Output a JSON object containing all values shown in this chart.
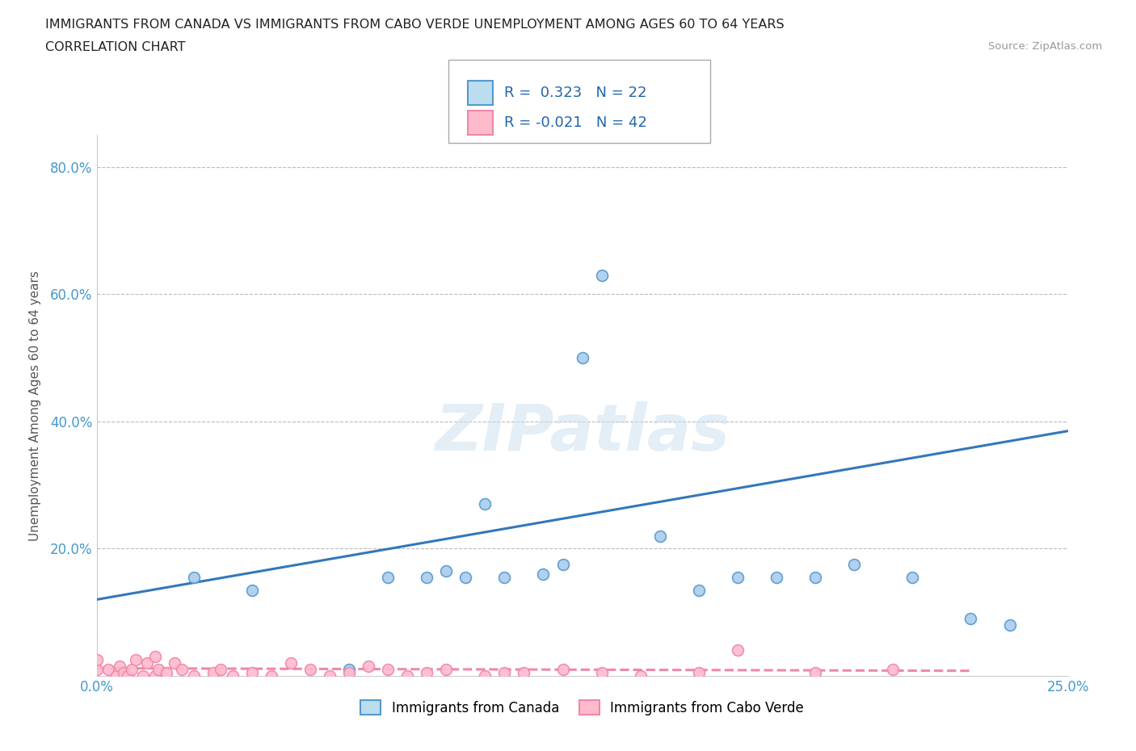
{
  "title_line1": "IMMIGRANTS FROM CANADA VS IMMIGRANTS FROM CABO VERDE UNEMPLOYMENT AMONG AGES 60 TO 64 YEARS",
  "title_line2": "CORRELATION CHART",
  "source_text": "Source: ZipAtlas.com",
  "ylabel": "Unemployment Among Ages 60 to 64 years",
  "xlim": [
    0.0,
    0.25
  ],
  "ylim": [
    0.0,
    0.85
  ],
  "xticks": [
    0.0,
    0.05,
    0.1,
    0.15,
    0.2,
    0.25
  ],
  "xticklabels": [
    "0.0%",
    "",
    "",
    "",
    "",
    "25.0%"
  ],
  "yticks": [
    0.0,
    0.2,
    0.4,
    0.6,
    0.8
  ],
  "yticklabels": [
    "",
    "20.0%",
    "40.0%",
    "60.0%",
    "80.0%"
  ],
  "watermark": "ZIPatlas",
  "canada_color": "#aaccee",
  "cabo_verde_color": "#ffbbcc",
  "canada_edge_color": "#5599cc",
  "cabo_verde_edge_color": "#ee88aa",
  "canada_R": 0.323,
  "canada_N": 22,
  "cabo_verde_R": -0.021,
  "cabo_verde_N": 42,
  "canada_line_color": "#3377bb",
  "cabo_verde_line_color": "#ee88aa",
  "canada_scatter_x": [
    0.025,
    0.04,
    0.065,
    0.075,
    0.085,
    0.09,
    0.095,
    0.1,
    0.105,
    0.115,
    0.12,
    0.125,
    0.13,
    0.145,
    0.155,
    0.165,
    0.175,
    0.185,
    0.195,
    0.21,
    0.225,
    0.235
  ],
  "canada_scatter_y": [
    0.155,
    0.135,
    0.01,
    0.155,
    0.155,
    0.165,
    0.155,
    0.27,
    0.155,
    0.16,
    0.175,
    0.5,
    0.63,
    0.22,
    0.135,
    0.155,
    0.155,
    0.155,
    0.175,
    0.155,
    0.09,
    0.08
  ],
  "cabo_verde_scatter_x": [
    0.0,
    0.0,
    0.003,
    0.005,
    0.006,
    0.007,
    0.008,
    0.009,
    0.01,
    0.012,
    0.013,
    0.015,
    0.015,
    0.016,
    0.018,
    0.02,
    0.022,
    0.025,
    0.03,
    0.032,
    0.035,
    0.04,
    0.045,
    0.05,
    0.055,
    0.06,
    0.065,
    0.07,
    0.075,
    0.08,
    0.085,
    0.09,
    0.1,
    0.105,
    0.11,
    0.12,
    0.13,
    0.14,
    0.155,
    0.165,
    0.185,
    0.205
  ],
  "cabo_verde_scatter_y": [
    0.01,
    0.025,
    0.01,
    0.0,
    0.015,
    0.005,
    0.0,
    0.01,
    0.025,
    0.0,
    0.02,
    0.0,
    0.03,
    0.01,
    0.005,
    0.02,
    0.01,
    0.0,
    0.005,
    0.01,
    0.0,
    0.005,
    0.0,
    0.02,
    0.01,
    0.0,
    0.005,
    0.015,
    0.01,
    0.0,
    0.005,
    0.01,
    0.0,
    0.005,
    0.005,
    0.01,
    0.005,
    0.0,
    0.005,
    0.04,
    0.005,
    0.01
  ],
  "canada_trendline_x": [
    0.0,
    0.25
  ],
  "canada_trendline_y": [
    0.12,
    0.385
  ],
  "cabo_verde_trendline_x": [
    0.0,
    0.225
  ],
  "cabo_verde_trendline_y": [
    0.012,
    0.008
  ],
  "grid_color": "#bbbbbb",
  "marker_size": 100,
  "legend_box_canada": "#bbddee",
  "legend_box_cabo_verde": "#ffbbcc",
  "title_fontsize": 11.5,
  "tick_fontsize": 12,
  "ylabel_fontsize": 11
}
